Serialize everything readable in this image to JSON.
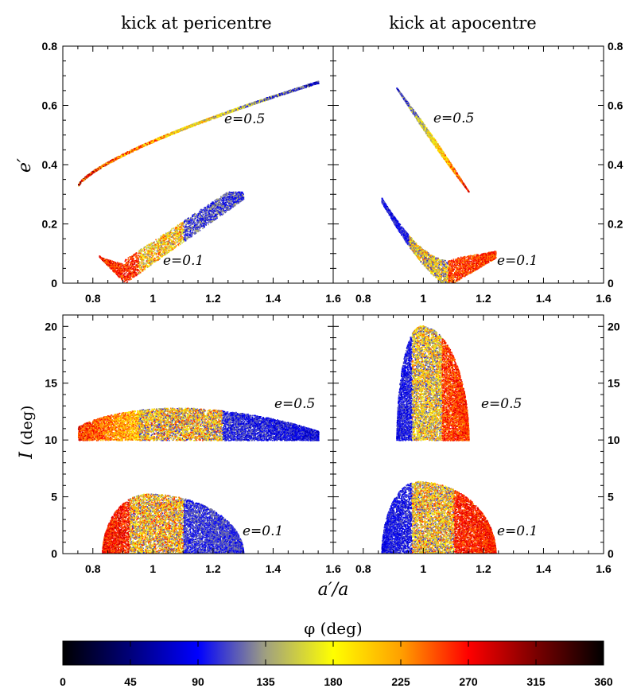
{
  "chart_data": {
    "type": "scatter",
    "panel_titles": [
      "kick at pericentre",
      "kick at apocentre"
    ],
    "xlabel": "a′/a",
    "ylabels": {
      "top": "e′",
      "bottom_symbol": "I",
      "bottom_unit": "(deg)"
    },
    "xlim": [
      0.7,
      1.6
    ],
    "xticks": [
      0.8,
      1.0,
      1.2,
      1.4,
      1.6
    ],
    "xtick_labels": [
      "0.8",
      "1",
      "1.2",
      "1.4",
      "1.6"
    ],
    "top_ylim": [
      0,
      0.8
    ],
    "top_yticks": [
      0,
      0.2,
      0.4,
      0.6,
      0.8
    ],
    "top_ytick_labels": [
      "0",
      "0.2",
      "0.4",
      "0.6",
      "0.8"
    ],
    "bottom_ylim": [
      0,
      21
    ],
    "bottom_yticks": [
      0,
      5,
      10,
      15,
      20
    ],
    "bottom_ytick_labels": [
      "0",
      "5",
      "10",
      "15",
      "20"
    ],
    "annotations": {
      "e05": "e=0.5",
      "e01": "e=0.1"
    },
    "colorbar": {
      "label": "φ (deg)",
      "range": [
        0,
        360
      ],
      "ticks": [
        0,
        45,
        90,
        135,
        180,
        225,
        270,
        315,
        360
      ],
      "tick_labels": [
        "0",
        "45",
        "90",
        "135",
        "180",
        "225",
        "270",
        "315",
        "360"
      ],
      "stops": [
        {
          "v": 0,
          "color": "#000000"
        },
        {
          "v": 45,
          "color": "#00007a"
        },
        {
          "v": 90,
          "color": "#0000ff"
        },
        {
          "v": 135,
          "color": "#a0a080"
        },
        {
          "v": 180,
          "color": "#ffff00"
        },
        {
          "v": 225,
          "color": "#ffa000"
        },
        {
          "v": 270,
          "color": "#ff0000"
        },
        {
          "v": 315,
          "color": "#7a0000"
        },
        {
          "v": 360,
          "color": "#000000"
        }
      ]
    },
    "series": [
      {
        "name": "peri e=0.5 (e′ vs a′/a)",
        "panel": "top-left",
        "x_range": [
          0.75,
          1.55
        ],
        "y_range": [
          0.33,
          0.68
        ]
      },
      {
        "name": "peri e=0.1 (e′ vs a′/a)",
        "panel": "top-left",
        "x_range": [
          0.82,
          1.3
        ],
        "y_range": [
          0.0,
          0.31
        ]
      },
      {
        "name": "apo e=0.5 (e′ vs a′/a)",
        "panel": "top-right",
        "x_range": [
          0.91,
          1.15
        ],
        "y_range": [
          0.31,
          0.66
        ]
      },
      {
        "name": "apo e=0.1 (e′ vs a′/a)",
        "panel": "top-right",
        "x_range": [
          0.86,
          1.24
        ],
        "y_range": [
          0.0,
          0.29
        ]
      },
      {
        "name": "peri e=0.5 (I vs a′/a)",
        "panel": "bottom-left",
        "x_range": [
          0.75,
          1.55
        ],
        "y_range": [
          10,
          13.4
        ]
      },
      {
        "name": "peri e=0.1 (I vs a′/a)",
        "panel": "bottom-left",
        "x_range": [
          0.83,
          1.3
        ],
        "y_range": [
          0,
          5.3
        ]
      },
      {
        "name": "apo e=0.5 (I vs a′/a)",
        "panel": "bottom-right",
        "x_range": [
          0.91,
          1.15
        ],
        "y_range": [
          10,
          20.1
        ]
      },
      {
        "name": "apo e=0.1 (I vs a′/a)",
        "panel": "bottom-right",
        "x_range": [
          0.86,
          1.24
        ],
        "y_range": [
          0,
          6.4
        ]
      }
    ]
  }
}
